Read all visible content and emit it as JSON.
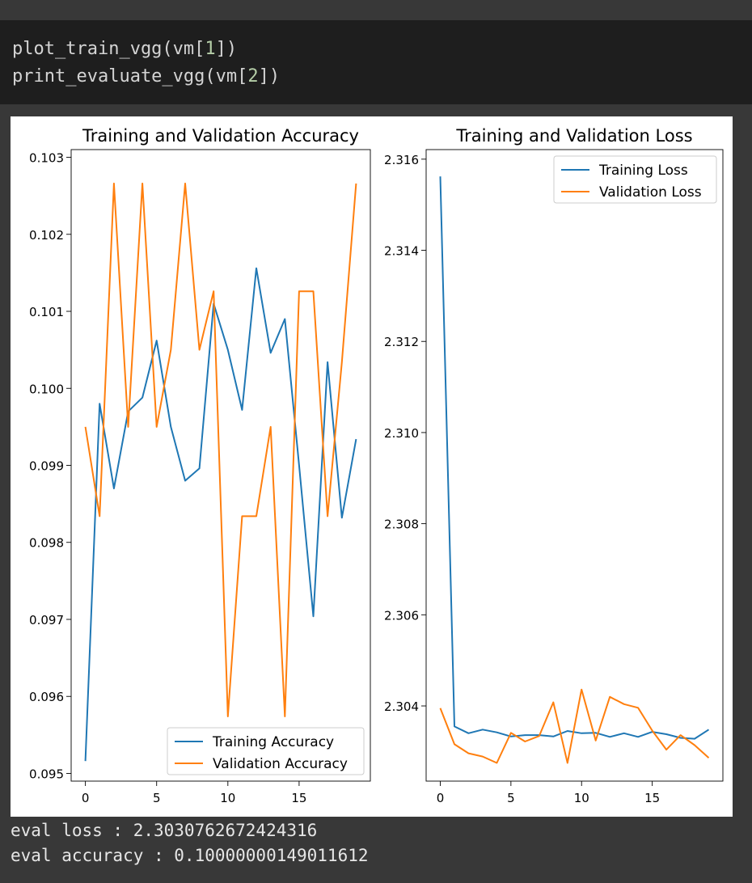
{
  "code": {
    "line1": {
      "prefix": "plot_train_vgg(vm[",
      "num": "1",
      "suffix": "])"
    },
    "line2": {
      "prefix": "print_evaluate_vgg(vm[",
      "num": "2",
      "suffix": "])"
    }
  },
  "output": {
    "eval_loss": "eval loss : 2.3030762672424316",
    "eval_accuracy": "eval accuracy : 0.10000000149011612"
  },
  "chart_data": [
    {
      "type": "line",
      "title": "Training and Validation Accuracy",
      "xlabel": "",
      "ylabel": "",
      "xlim": [
        -1,
        20
      ],
      "ylim": [
        0.0949,
        0.1031
      ],
      "xticks": [
        0,
        5,
        10,
        15
      ],
      "yticks": [
        0.095,
        0.096,
        0.097,
        0.098,
        0.099,
        0.1,
        0.101,
        0.102,
        0.103
      ],
      "ytick_labels": [
        "0.095",
        "0.096",
        "0.097",
        "0.098",
        "0.099",
        "0.100",
        "0.101",
        "0.102",
        "0.103"
      ],
      "legend_position": "lower-right",
      "x": [
        0,
        1,
        2,
        3,
        4,
        5,
        6,
        7,
        8,
        9,
        10,
        11,
        12,
        13,
        14,
        15,
        16,
        17,
        18,
        19
      ],
      "series": [
        {
          "name": "Training Accuracy",
          "color": "#1f77b4",
          "values": [
            0.09516,
            0.0998,
            0.0987,
            0.0997,
            0.09988,
            0.10062,
            0.0995,
            0.0988,
            0.09896,
            0.1011,
            0.1005,
            0.09972,
            0.10156,
            0.10046,
            0.1009,
            0.099,
            0.09704,
            0.10034,
            0.09832,
            0.09934
          ]
        },
        {
          "name": "Validation Accuracy",
          "color": "#ff7f0e",
          "values": [
            0.0995,
            0.09834,
            0.10266,
            0.0995,
            0.10266,
            0.0995,
            0.1005,
            0.10266,
            0.1005,
            0.10126,
            0.09574,
            0.09834,
            0.09834,
            0.0995,
            0.09574,
            0.10126,
            0.10126,
            0.09834,
            0.10034,
            0.10266
          ]
        }
      ]
    },
    {
      "type": "line",
      "title": "Training and Validation Loss",
      "xlabel": "",
      "ylabel": "",
      "xlim": [
        -1,
        20
      ],
      "ylim": [
        2.30235,
        2.31621
      ],
      "xticks": [
        0,
        5,
        10,
        15
      ],
      "yticks": [
        2.304,
        2.306,
        2.308,
        2.31,
        2.312,
        2.314,
        2.316
      ],
      "ytick_labels": [
        "2.304",
        "2.306",
        "2.308",
        "2.310",
        "2.312",
        "2.314",
        "2.316"
      ],
      "legend_position": "upper-right",
      "x": [
        0,
        1,
        2,
        3,
        4,
        5,
        6,
        7,
        8,
        9,
        10,
        11,
        12,
        13,
        14,
        15,
        16,
        17,
        18,
        19
      ],
      "series": [
        {
          "name": "Training Loss",
          "color": "#1f77b4",
          "values": [
            2.31562,
            2.30355,
            2.3034,
            2.30348,
            2.30342,
            2.30333,
            2.30336,
            2.30336,
            2.30333,
            2.30345,
            2.3034,
            2.30341,
            2.30332,
            2.3034,
            2.30332,
            2.30343,
            2.30338,
            2.3033,
            2.30328,
            2.30348
          ]
        },
        {
          "name": "Validation Loss",
          "color": "#ff7f0e",
          "values": [
            2.30395,
            2.30316,
            2.30296,
            2.30289,
            2.30275,
            2.30341,
            2.30322,
            2.30334,
            2.30408,
            2.30275,
            2.30436,
            2.30324,
            2.3042,
            2.30404,
            2.30396,
            2.30346,
            2.30304,
            2.30336,
            2.30314,
            2.30286
          ]
        }
      ]
    }
  ]
}
